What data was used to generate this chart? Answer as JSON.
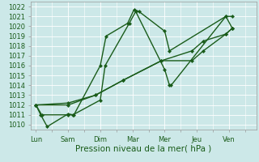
{
  "background_color": "#cce8e8",
  "grid_color": "#ffffff",
  "line_color": "#1a5c1a",
  "markersize": 2.5,
  "linewidth": 1.0,
  "xlabel": "Pression niveau de la mer( hPa )",
  "xlabel_fontsize": 7.5,
  "tick_fontsize": 6,
  "xlabels": [
    "Lun",
    "Sam",
    "Dim",
    "Mar",
    "Mer",
    "Jeu",
    "Ven"
  ],
  "xtick_pos": [
    0,
    1,
    2,
    3,
    4,
    5,
    6
  ],
  "ylim": [
    1009.5,
    1022.5
  ],
  "yticks": [
    1010,
    1011,
    1012,
    1013,
    1014,
    1015,
    1016,
    1017,
    1018,
    1019,
    1020,
    1021,
    1022
  ],
  "xlim": [
    -0.15,
    6.85
  ],
  "l1x": [
    0,
    0.18,
    1.0,
    1.18,
    2.0,
    2.18,
    2.85,
    3.05,
    3.2,
    4.0,
    4.15,
    5.9,
    6.1
  ],
  "l1y": [
    1012,
    1011,
    1011,
    1011,
    1016,
    1019,
    1020.3,
    1021.7,
    1021.5,
    1019.5,
    1017.5,
    1021.0,
    1021.0
  ],
  "l2x": [
    0,
    0.15,
    0.35,
    1.0,
    1.15,
    2.0,
    2.15,
    2.9,
    3.1,
    4.0,
    4.15,
    4.2,
    5.9,
    6.1
  ],
  "l2y": [
    1012,
    1011,
    1009.8,
    1011.1,
    1011.0,
    1012.5,
    1016.0,
    1020.3,
    1021.5,
    1015.6,
    1014.0,
    1014.0,
    1021.0,
    1019.8
  ],
  "l3x": [
    0,
    1.0,
    1.85,
    2.7,
    3.9,
    4.85,
    5.2,
    5.9,
    6.1
  ],
  "l3y": [
    1012,
    1012.2,
    1013.0,
    1014.5,
    1016.5,
    1017.5,
    1018.5,
    1019.2,
    1019.8
  ],
  "l4x": [
    0,
    1.0,
    1.85,
    2.7,
    3.9,
    4.85,
    5.2,
    5.9,
    6.1
  ],
  "l4y": [
    1012,
    1012.0,
    1013.0,
    1014.5,
    1016.5,
    1016.5,
    1017.5,
    1019.2,
    1019.8
  ]
}
